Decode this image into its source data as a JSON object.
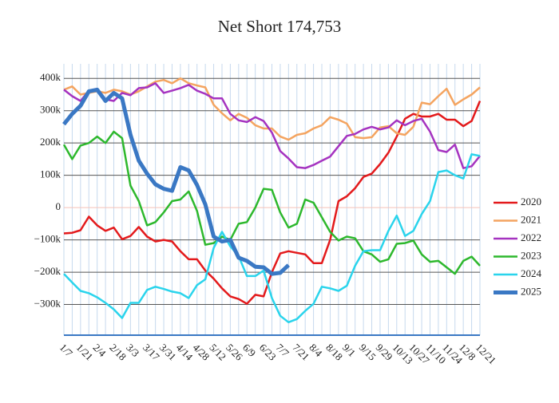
{
  "chart_data": {
    "type": "line",
    "title": "Net Short 174,753",
    "categories": [
      "1/7",
      null,
      "1/21",
      null,
      "2/4",
      null,
      "2/18",
      null,
      "3/3",
      null,
      "3/17",
      null,
      "3/31",
      null,
      "4/14",
      null,
      "4/28",
      null,
      "5/12",
      null,
      "5/26",
      null,
      "6/9",
      null,
      "6/23",
      null,
      "7/7",
      null,
      "7/21",
      null,
      "8/4",
      null,
      "8/18",
      null,
      "9/1",
      null,
      "9/15",
      null,
      "9/29",
      null,
      "10/13",
      null,
      "10/27",
      null,
      "11/10",
      null,
      "11/24",
      null,
      "12/8",
      null,
      "12/21"
    ],
    "ylim": [
      -395000,
      445000
    ],
    "yticks": [
      {
        "value": 400000,
        "label": "400k"
      },
      {
        "value": 300000,
        "label": "300k"
      },
      {
        "value": 200000,
        "label": "200k"
      },
      {
        "value": 100000,
        "label": "100k"
      },
      0,
      {
        "value": -100000,
        "label": "−100k"
      },
      {
        "value": -200000,
        "label": "−200k"
      },
      {
        "value": -300000,
        "label": "−300k"
      }
    ],
    "grid": true,
    "legend": "right",
    "series": [
      {
        "name": "2020",
        "color": "#e31a1c",
        "width": 2.5,
        "values": [
          -80000,
          -78000,
          -70000,
          -28000,
          -55000,
          -72000,
          -62000,
          -98000,
          -88000,
          -60000,
          -90000,
          -105000,
          -100000,
          -105000,
          -135000,
          -160000,
          -160000,
          -195000,
          -220000,
          -250000,
          -275000,
          -283000,
          -298000,
          -270000,
          -275000,
          -200000,
          -142000,
          -135000,
          -140000,
          -145000,
          -172000,
          -172000,
          -100000,
          20000,
          35000,
          60000,
          95000,
          105000,
          135000,
          170000,
          220000,
          275000,
          290000,
          282000,
          282000,
          290000,
          272000,
          272000,
          252000,
          268000,
          330000
        ]
      },
      {
        "name": "2021",
        "color": "#f4a460",
        "width": 2.5,
        "values": [
          365000,
          375000,
          350000,
          355000,
          360000,
          355000,
          365000,
          360000,
          350000,
          360000,
          375000,
          390000,
          395000,
          385000,
          400000,
          385000,
          378000,
          372000,
          318000,
          292000,
          270000,
          290000,
          278000,
          255000,
          245000,
          245000,
          220000,
          210000,
          225000,
          230000,
          245000,
          255000,
          280000,
          272000,
          260000,
          218000,
          215000,
          218000,
          248000,
          252000,
          230000,
          225000,
          250000,
          325000,
          320000,
          345000,
          368000,
          318000,
          335000,
          350000,
          372000
        ]
      },
      {
        "name": "2022",
        "color": "#a533c0",
        "width": 2.5,
        "values": [
          365000,
          345000,
          330000,
          362000,
          368000,
          335000,
          330000,
          355000,
          348000,
          370000,
          372000,
          385000,
          355000,
          362000,
          370000,
          380000,
          362000,
          352000,
          338000,
          338000,
          290000,
          270000,
          265000,
          280000,
          268000,
          232000,
          175000,
          152000,
          125000,
          122000,
          132000,
          145000,
          158000,
          190000,
          222000,
          228000,
          242000,
          250000,
          242000,
          248000,
          270000,
          255000,
          268000,
          275000,
          235000,
          178000,
          172000,
          195000,
          122000,
          128000,
          160000
        ]
      },
      {
        "name": "2023",
        "color": "#2db82d",
        "width": 2.5,
        "values": [
          195000,
          150000,
          192000,
          200000,
          220000,
          200000,
          235000,
          215000,
          68000,
          20000,
          -55000,
          -45000,
          -15000,
          20000,
          25000,
          50000,
          -10000,
          -115000,
          -110000,
          -90000,
          -100000,
          -50000,
          -45000,
          0,
          58000,
          55000,
          -15000,
          -62000,
          -50000,
          25000,
          15000,
          -30000,
          -75000,
          -102000,
          -90000,
          -95000,
          -135000,
          -145000,
          -168000,
          -160000,
          -112000,
          -110000,
          -102000,
          -145000,
          -168000,
          -165000,
          -185000,
          -205000,
          -165000,
          -152000,
          -180000
        ]
      },
      {
        "name": "2024",
        "color": "#2ad4ec",
        "width": 2.5,
        "values": [
          -205000,
          -232000,
          -258000,
          -265000,
          -278000,
          -295000,
          -315000,
          -342000,
          -295000,
          -295000,
          -255000,
          -245000,
          -252000,
          -260000,
          -265000,
          -280000,
          -240000,
          -222000,
          -125000,
          -75000,
          -120000,
          -150000,
          -212000,
          -212000,
          -195000,
          -280000,
          -335000,
          -355000,
          -345000,
          -320000,
          -298000,
          -245000,
          -250000,
          -258000,
          -242000,
          -180000,
          -135000,
          -132000,
          -132000,
          -72000,
          -25000,
          -88000,
          -72000,
          -20000,
          20000,
          110000,
          115000,
          100000,
          90000,
          165000,
          160000
        ]
      },
      {
        "name": "2025",
        "color": "#3a78c4",
        "width": 5,
        "values": [
          258000,
          290000,
          315000,
          360000,
          365000,
          330000,
          355000,
          338000,
          225000,
          145000,
          105000,
          72000,
          58000,
          52000,
          125000,
          115000,
          70000,
          10000,
          -90000,
          -105000,
          -100000,
          -155000,
          -165000,
          -183000,
          -185000,
          -205000,
          -202000,
          -178000,
          null,
          null,
          null,
          null,
          null,
          null,
          null,
          null,
          null,
          null,
          null,
          null,
          null,
          null,
          null,
          null,
          null,
          null,
          null,
          null,
          null,
          null,
          null
        ]
      }
    ]
  }
}
